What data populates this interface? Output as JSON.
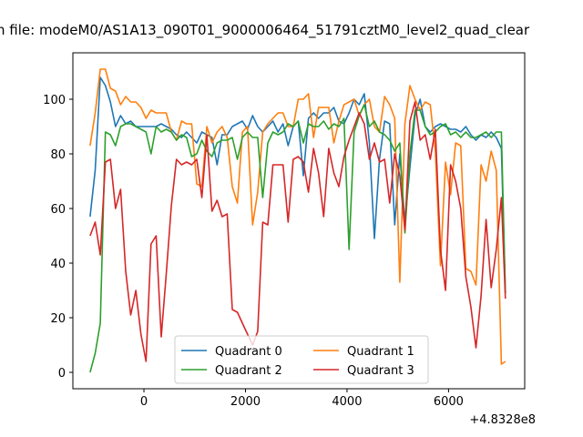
{
  "chart_data": {
    "type": "line",
    "title": "n file: modeM0/AS1A13_090T01_9000006464_51791cztM0_level2_quad_clear",
    "xlabel": "",
    "ylabel": "",
    "x_offset_label": "+4.8328e8",
    "xlim": [
      -1400,
      7500
    ],
    "ylim": [
      -6,
      117
    ],
    "xticks": [
      0,
      2000,
      4000,
      6000
    ],
    "yticks": [
      0,
      20,
      40,
      60,
      80,
      100
    ],
    "xtick_labels": [
      "0",
      "2000",
      "4000",
      "6000"
    ],
    "ytick_labels": [
      "0",
      "20",
      "40",
      "60",
      "80",
      "100"
    ],
    "grid": false,
    "legend_position": "lower center",
    "x": [
      -1060,
      -960,
      -860,
      -760,
      -660,
      -560,
      -460,
      -360,
      -260,
      -160,
      -60,
      40,
      140,
      240,
      340,
      440,
      540,
      640,
      740,
      840,
      940,
      1040,
      1140,
      1240,
      1340,
      1440,
      1540,
      1640,
      1740,
      1840,
      1940,
      2040,
      2140,
      2240,
      2340,
      2440,
      2540,
      2640,
      2740,
      2840,
      2940,
      3040,
      3140,
      3240,
      3340,
      3440,
      3540,
      3640,
      3740,
      3840,
      3940,
      4040,
      4140,
      4240,
      4340,
      4440,
      4540,
      4640,
      4740,
      4840,
      4940,
      5040,
      5140,
      5240,
      5340,
      5440,
      5540,
      5640,
      5740,
      5840,
      5940,
      6040,
      6140,
      6240,
      6340,
      6440,
      6540,
      6640,
      6740,
      6840,
      6940,
      7040,
      7120
    ],
    "series": [
      {
        "name": "Quadrant 0",
        "color": "#1f77b4",
        "values": [
          57,
          74,
          108,
          105,
          99,
          90,
          94,
          91,
          92,
          90,
          90,
          90,
          90,
          90,
          91,
          90,
          89,
          87,
          86,
          88,
          86,
          84,
          88,
          87,
          86,
          76,
          87,
          87,
          90,
          91,
          92,
          89,
          94,
          90,
          88,
          90,
          92,
          88,
          91,
          83,
          90,
          92,
          72,
          93,
          95,
          93,
          95,
          95,
          97,
          92,
          91,
          95,
          100,
          98,
          102,
          84,
          49,
          78,
          92,
          91,
          54,
          80,
          55,
          75,
          94,
          100,
          90,
          88,
          90,
          91,
          90,
          89,
          89,
          88,
          90,
          87,
          85,
          87,
          86,
          88,
          86,
          82,
          29
        ]
      },
      {
        "name": "Quadrant 1",
        "color": "#ff7f0e",
        "values": [
          83,
          95,
          111,
          111,
          104,
          103,
          98,
          101,
          99,
          99,
          97,
          93,
          96,
          95,
          95,
          95,
          88,
          85,
          92,
          91,
          91,
          69,
          68,
          90,
          84,
          88,
          90,
          86,
          68,
          62,
          88,
          90,
          54,
          66,
          88,
          91,
          93,
          95,
          95,
          90,
          90,
          100,
          100,
          102,
          86,
          97,
          97,
          97,
          84,
          92,
          98,
          99,
          100,
          94,
          98,
          100,
          90,
          88,
          101,
          98,
          93,
          33,
          91,
          105,
          100,
          96,
          99,
          98,
          81,
          39,
          77,
          65,
          84,
          83,
          38,
          37,
          32,
          76,
          70,
          81,
          74,
          3,
          4
        ]
      },
      {
        "name": "Quadrant 2",
        "color": "#2ca02c",
        "values": [
          0,
          7,
          18,
          88,
          87,
          83,
          90,
          91,
          91,
          90,
          89,
          88,
          80,
          90,
          88,
          89,
          88,
          85,
          87,
          86,
          79,
          80,
          85,
          81,
          79,
          84,
          85,
          85,
          86,
          78,
          86,
          88,
          86,
          86,
          64,
          84,
          88,
          87,
          88,
          91,
          90,
          92,
          84,
          91,
          90,
          90,
          92,
          89,
          91,
          90,
          93,
          45,
          88,
          94,
          98,
          90,
          92,
          88,
          87,
          85,
          81,
          84,
          51,
          80,
          96,
          96,
          90,
          87,
          88,
          90,
          91,
          87,
          88,
          86,
          88,
          86,
          86,
          87,
          88,
          86,
          88,
          88,
          29
        ]
      },
      {
        "name": "Quadrant 3",
        "color": "#d62728",
        "values": [
          50,
          55,
          43,
          77,
          78,
          60,
          67,
          37,
          21,
          30,
          14,
          4,
          47,
          50,
          13,
          36,
          61,
          78,
          76,
          77,
          76,
          78,
          64,
          87,
          59,
          63,
          57,
          58,
          23,
          22,
          18,
          14,
          10,
          15,
          55,
          54,
          76,
          76,
          76,
          55,
          78,
          79,
          77,
          66,
          82,
          73,
          57,
          82,
          73,
          68,
          79,
          85,
          90,
          95,
          91,
          78,
          84,
          77,
          78,
          62,
          80,
          72,
          52,
          92,
          99,
          85,
          87,
          78,
          89,
          45,
          30,
          76,
          70,
          60,
          35,
          24,
          9,
          28,
          56,
          31,
          45,
          64,
          27
        ]
      }
    ]
  }
}
